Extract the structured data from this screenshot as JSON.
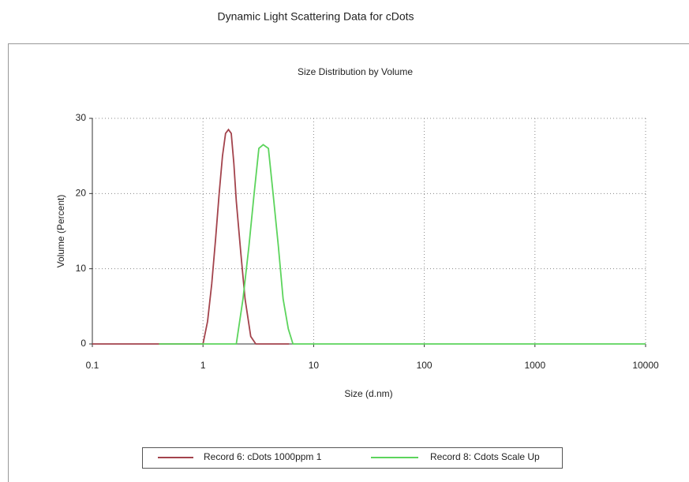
{
  "title": "Dynamic Light Scattering Data for cDots",
  "chart_data": {
    "type": "line",
    "title": "Size Distribution by Volume",
    "x_label": "Size (d.nm)",
    "y_label": "Volume (Percent)",
    "x_scale": "log",
    "grid": true,
    "xlim": [
      0.1,
      10000
    ],
    "xticks": [
      0.1,
      1,
      10,
      100,
      1000,
      10000
    ],
    "ylim": [
      0,
      30
    ],
    "yticks": [
      0,
      10,
      20,
      30
    ],
    "series": [
      {
        "name": "Record 6: cDots 1000ppm 1",
        "color": "#a3434c",
        "x": [
          0.1,
          1.0,
          1.1,
          1.2,
          1.3,
          1.4,
          1.5,
          1.6,
          1.7,
          1.8,
          1.9,
          2.0,
          2.2,
          2.4,
          2.7,
          3.0,
          6.0
        ],
        "values": [
          0,
          0,
          3,
          8,
          14,
          20,
          25,
          28,
          28.5,
          28,
          24,
          19,
          12,
          6,
          1,
          0,
          0
        ]
      },
      {
        "name": "Record 8: Cdots Scale Up",
        "color": "#5cd45c",
        "x": [
          0.4,
          2.0,
          2.3,
          2.6,
          2.9,
          3.2,
          3.5,
          3.9,
          4.3,
          4.8,
          5.3,
          5.9,
          6.5,
          10000
        ],
        "values": [
          0,
          0,
          6,
          13,
          20,
          26,
          26.5,
          26,
          20,
          13,
          6,
          2,
          0,
          0
        ]
      }
    ]
  }
}
